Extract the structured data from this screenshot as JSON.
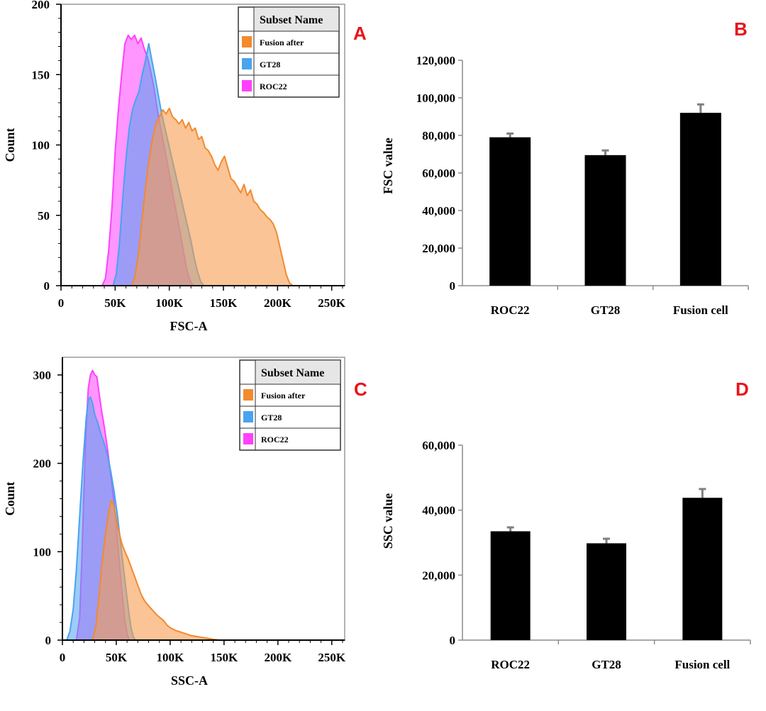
{
  "panel_letter_color": "#e8131b",
  "chart_data": [
    {
      "id": "A",
      "type": "area",
      "panel_label": "A",
      "xlabel": "FSC-A",
      "ylabel": "Count",
      "xlim": [
        0,
        262000
      ],
      "ylim": [
        0,
        200
      ],
      "x_ticks": [
        0,
        50000,
        100000,
        150000,
        200000,
        250000
      ],
      "x_tick_labels": [
        "0",
        "50K",
        "100K",
        "150K",
        "200K",
        "250K"
      ],
      "y_ticks": [
        0,
        50,
        100,
        150,
        200
      ],
      "y_tick_labels": [
        "0",
        "50",
        "100",
        "150",
        "200"
      ],
      "legend": {
        "header": "Subset Name",
        "entries": [
          "Fusion after",
          "GT28",
          "ROC22"
        ],
        "position": "top-right"
      },
      "series": [
        {
          "name": "ROC22",
          "color": "#ff40ff",
          "fill": "rgba(255,64,255,0.55)",
          "points": [
            [
              0,
              0
            ],
            [
              38000,
              0
            ],
            [
              41000,
              5
            ],
            [
              44000,
              25
            ],
            [
              47000,
              55
            ],
            [
              50000,
              95
            ],
            [
              53000,
              125
            ],
            [
              56000,
              150
            ],
            [
              59000,
              172
            ],
            [
              62000,
              178
            ],
            [
              65000,
              175
            ],
            [
              68000,
              178
            ],
            [
              71000,
              172
            ],
            [
              74000,
              176
            ],
            [
              77000,
              168
            ],
            [
              80000,
              162
            ],
            [
              83000,
              152
            ],
            [
              86000,
              140
            ],
            [
              89000,
              125
            ],
            [
              92000,
              112
            ],
            [
              95000,
              100
            ],
            [
              98000,
              88
            ],
            [
              101000,
              75
            ],
            [
              104000,
              62
            ],
            [
              107000,
              50
            ],
            [
              110000,
              38
            ],
            [
              113000,
              25
            ],
            [
              116000,
              12
            ],
            [
              119000,
              4
            ],
            [
              122000,
              0
            ],
            [
              262000,
              0
            ]
          ]
        },
        {
          "name": "GT28",
          "color": "#4aa3f0",
          "fill": "rgba(74,163,240,0.55)",
          "points": [
            [
              0,
              0
            ],
            [
              48000,
              0
            ],
            [
              51000,
              8
            ],
            [
              54000,
              30
            ],
            [
              57000,
              62
            ],
            [
              60000,
              90
            ],
            [
              63000,
              112
            ],
            [
              66000,
              125
            ],
            [
              69000,
              132
            ],
            [
              72000,
              138
            ],
            [
              75000,
              150
            ],
            [
              78000,
              160
            ],
            [
              81000,
              172
            ],
            [
              84000,
              160
            ],
            [
              87000,
              148
            ],
            [
              90000,
              135
            ],
            [
              93000,
              122
            ],
            [
              96000,
              112
            ],
            [
              99000,
              102
            ],
            [
              102000,
              92
            ],
            [
              105000,
              82
            ],
            [
              108000,
              72
            ],
            [
              111000,
              62
            ],
            [
              114000,
              52
            ],
            [
              117000,
              42
            ],
            [
              120000,
              32
            ],
            [
              123000,
              20
            ],
            [
              126000,
              10
            ],
            [
              129000,
              3
            ],
            [
              132000,
              0
            ],
            [
              262000,
              0
            ]
          ]
        },
        {
          "name": "Fusion after",
          "color": "#f38a2d",
          "fill": "rgba(246,156,80,0.6)",
          "points": [
            [
              0,
              0
            ],
            [
              65000,
              0
            ],
            [
              68000,
              5
            ],
            [
              72000,
              25
            ],
            [
              76000,
              55
            ],
            [
              80000,
              82
            ],
            [
              84000,
              102
            ],
            [
              88000,
              116
            ],
            [
              91000,
              120
            ],
            [
              94000,
              125
            ],
            [
              97000,
              122
            ],
            [
              100000,
              126
            ],
            [
              103000,
              120
            ],
            [
              106000,
              118
            ],
            [
              109000,
              115
            ],
            [
              112000,
              118
            ],
            [
              115000,
              112
            ],
            [
              118000,
              116
            ],
            [
              121000,
              110
            ],
            [
              124000,
              112
            ],
            [
              127000,
              104
            ],
            [
              130000,
              106
            ],
            [
              133000,
              98
            ],
            [
              136000,
              96
            ],
            [
              139000,
              92
            ],
            [
              142000,
              86
            ],
            [
              145000,
              82
            ],
            [
              148000,
              88
            ],
            [
              151000,
              92
            ],
            [
              154000,
              84
            ],
            [
              157000,
              76
            ],
            [
              160000,
              74
            ],
            [
              163000,
              70
            ],
            [
              166000,
              66
            ],
            [
              169000,
              72
            ],
            [
              172000,
              64
            ],
            [
              175000,
              68
            ],
            [
              178000,
              60
            ],
            [
              181000,
              58
            ],
            [
              184000,
              54
            ],
            [
              187000,
              52
            ],
            [
              190000,
              49
            ],
            [
              193000,
              47
            ],
            [
              196000,
              44
            ],
            [
              199000,
              38
            ],
            [
              202000,
              28
            ],
            [
              205000,
              18
            ],
            [
              208000,
              8
            ],
            [
              211000,
              2
            ],
            [
              214000,
              0
            ],
            [
              262000,
              0
            ]
          ]
        }
      ]
    },
    {
      "id": "B",
      "type": "bar",
      "panel_label": "B",
      "ylabel": "FSC value",
      "categories": [
        "ROC22",
        "GT28",
        "Fusion cell"
      ],
      "values": [
        79000,
        69500,
        92000
      ],
      "errors": [
        2000,
        2500,
        4500
      ],
      "bar_color": "#000000",
      "error_color": "#808080",
      "ylim": [
        0,
        120000
      ],
      "y_ticks": [
        0,
        20000,
        40000,
        60000,
        80000,
        100000,
        120000
      ],
      "y_tick_labels": [
        "0",
        "20,000",
        "40,000",
        "60,000",
        "80,000",
        "100,000",
        "120,000"
      ]
    },
    {
      "id": "C",
      "type": "area",
      "panel_label": "C",
      "xlabel": "SSC-A",
      "ylabel": "Count",
      "xlim": [
        0,
        262000
      ],
      "ylim": [
        0,
        320
      ],
      "x_ticks": [
        0,
        50000,
        100000,
        150000,
        200000,
        250000
      ],
      "x_tick_labels": [
        "0",
        "50K",
        "100K",
        "150K",
        "200K",
        "250K"
      ],
      "y_ticks": [
        0,
        100,
        200,
        300
      ],
      "y_tick_labels": [
        "0",
        "100",
        "200",
        "300"
      ],
      "legend": {
        "header": "Subset Name",
        "entries": [
          "Fusion after",
          "GT28",
          "ROC22"
        ],
        "position": "top-right"
      },
      "series": [
        {
          "name": "ROC22",
          "color": "#ff40ff",
          "fill": "rgba(255,64,255,0.55)",
          "points": [
            [
              0,
              0
            ],
            [
              13000,
              0
            ],
            [
              16000,
              25
            ],
            [
              18000,
              90
            ],
            [
              20000,
              170
            ],
            [
              22000,
              240
            ],
            [
              24000,
              285
            ],
            [
              26000,
              300
            ],
            [
              28000,
              305
            ],
            [
              30000,
              300
            ],
            [
              32000,
              298
            ],
            [
              34000,
              280
            ],
            [
              36000,
              262
            ],
            [
              38000,
              248
            ],
            [
              40000,
              232
            ],
            [
              42000,
              215
            ],
            [
              44000,
              195
            ],
            [
              46000,
              175
            ],
            [
              48000,
              155
            ],
            [
              50000,
              130
            ],
            [
              52000,
              100
            ],
            [
              54000,
              72
            ],
            [
              56000,
              45
            ],
            [
              58000,
              22
            ],
            [
              60000,
              8
            ],
            [
              62000,
              0
            ],
            [
              262000,
              0
            ]
          ]
        },
        {
          "name": "GT28",
          "color": "#4aa3f0",
          "fill": "rgba(74,163,240,0.55)",
          "points": [
            [
              0,
              0
            ],
            [
              4000,
              0
            ],
            [
              7000,
              10
            ],
            [
              10000,
              35
            ],
            [
              13000,
              80
            ],
            [
              16000,
              140
            ],
            [
              19000,
              200
            ],
            [
              22000,
              250
            ],
            [
              24000,
              272
            ],
            [
              26000,
              275
            ],
            [
              28000,
              268
            ],
            [
              30000,
              255
            ],
            [
              33000,
              245
            ],
            [
              36000,
              232
            ],
            [
              39000,
              222
            ],
            [
              42000,
              208
            ],
            [
              45000,
              190
            ],
            [
              48000,
              168
            ],
            [
              51000,
              142
            ],
            [
              54000,
              110
            ],
            [
              57000,
              78
            ],
            [
              60000,
              48
            ],
            [
              62000,
              28
            ],
            [
              64000,
              12
            ],
            [
              66000,
              3
            ],
            [
              68000,
              0
            ],
            [
              262000,
              0
            ]
          ]
        },
        {
          "name": "Fusion after",
          "color": "#f38a2d",
          "fill": "rgba(246,156,80,0.6)",
          "points": [
            [
              0,
              0
            ],
            [
              28000,
              0
            ],
            [
              31000,
              15
            ],
            [
              34000,
              50
            ],
            [
              37000,
              90
            ],
            [
              40000,
              120
            ],
            [
              43000,
              145
            ],
            [
              45000,
              158
            ],
            [
              47000,
              155
            ],
            [
              49000,
              145
            ],
            [
              51000,
              130
            ],
            [
              53000,
              120
            ],
            [
              55000,
              110
            ],
            [
              58000,
              100
            ],
            [
              61000,
              92
            ],
            [
              64000,
              82
            ],
            [
              67000,
              72
            ],
            [
              70000,
              62
            ],
            [
              73000,
              52
            ],
            [
              76000,
              45
            ],
            [
              79000,
              40
            ],
            [
              82000,
              36
            ],
            [
              85000,
              32
            ],
            [
              88000,
              28
            ],
            [
              91000,
              25
            ],
            [
              94000,
              22
            ],
            [
              97000,
              17
            ],
            [
              100000,
              14
            ],
            [
              105000,
              11
            ],
            [
              110000,
              9
            ],
            [
              115000,
              7
            ],
            [
              120000,
              5
            ],
            [
              125000,
              4
            ],
            [
              130000,
              3
            ],
            [
              135000,
              2
            ],
            [
              140000,
              1
            ],
            [
              145000,
              0
            ],
            [
              262000,
              0
            ]
          ]
        }
      ]
    },
    {
      "id": "D",
      "type": "bar",
      "panel_label": "D",
      "ylabel": "SSC value",
      "categories": [
        "ROC22",
        "GT28",
        "Fusion cell"
      ],
      "values": [
        33500,
        29800,
        43800
      ],
      "errors": [
        1200,
        1400,
        2700
      ],
      "bar_color": "#000000",
      "error_color": "#808080",
      "ylim": [
        0,
        60000
      ],
      "y_ticks": [
        0,
        20000,
        40000,
        60000
      ],
      "y_tick_labels": [
        "0",
        "20,000",
        "40,000",
        "60,000"
      ]
    }
  ]
}
